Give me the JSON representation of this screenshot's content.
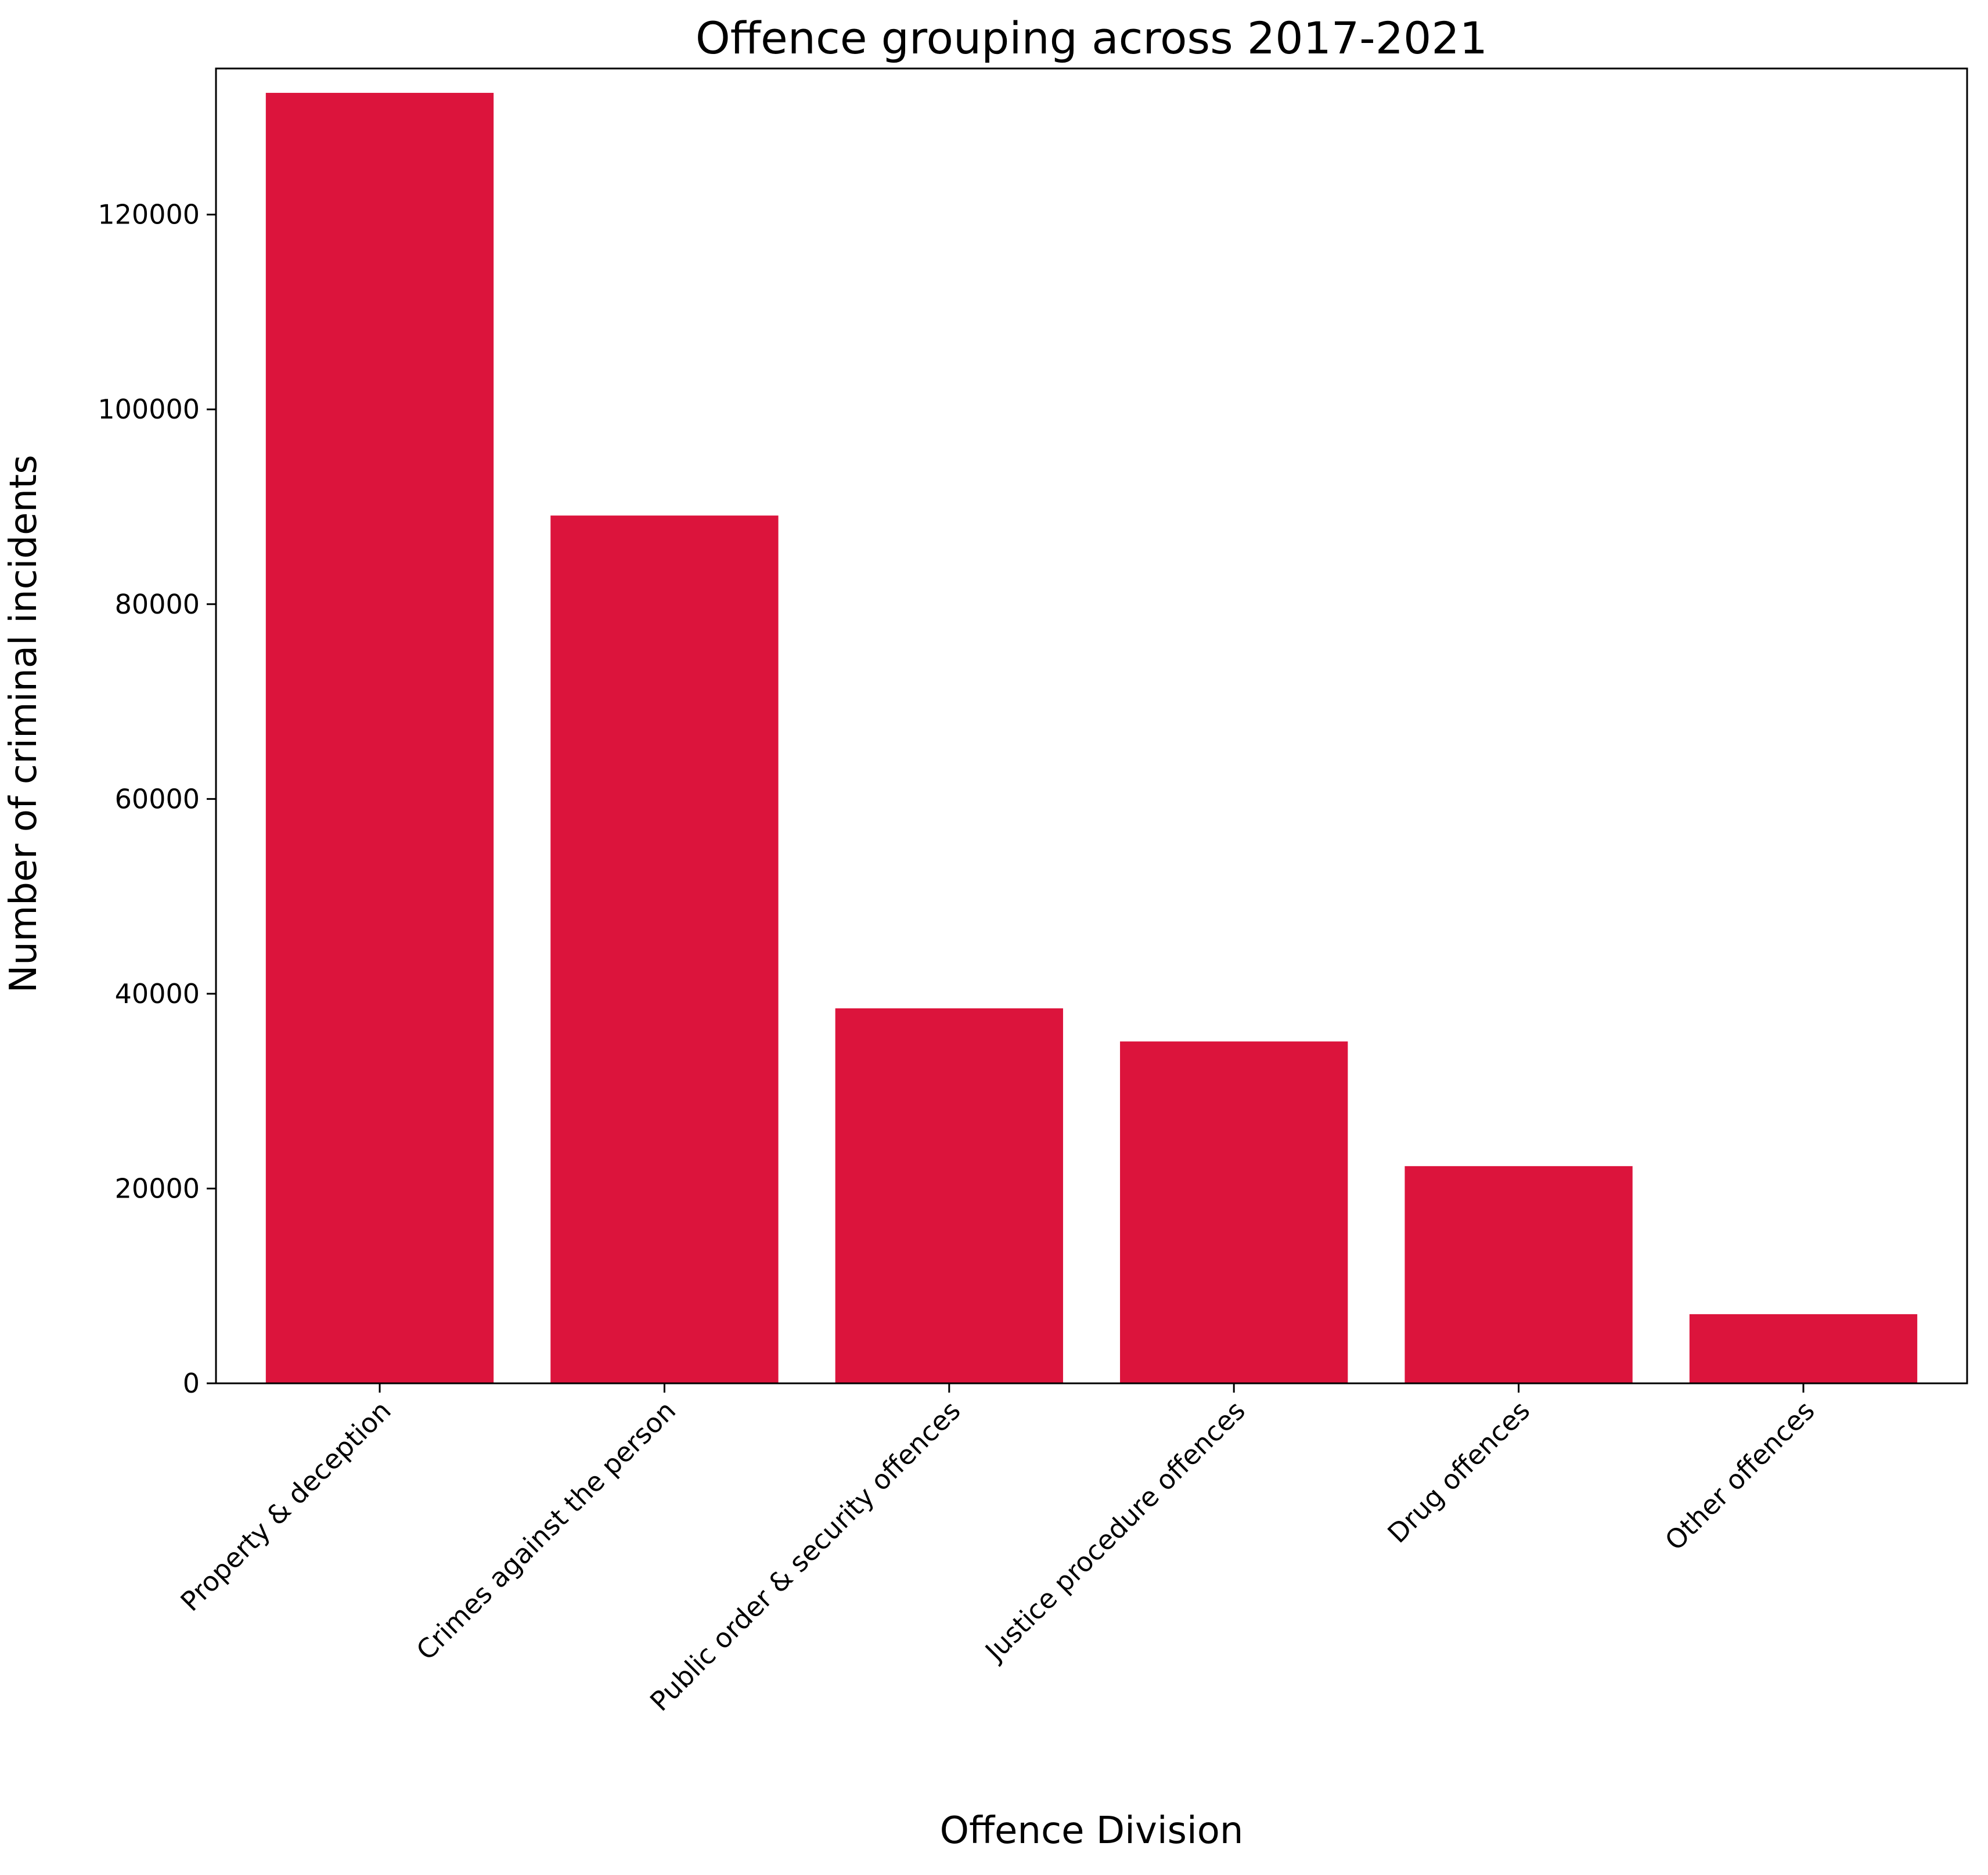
{
  "chart_data": {
    "type": "bar",
    "title": "Offence grouping across 2017-2021",
    "xlabel": "Offence Division",
    "ylabel": "Number of criminal incidents",
    "categories": [
      "Property & deception",
      "Crimes against the person",
      "Public order & security offences",
      "Justice procedure offences",
      "Drug offences",
      "Other offences"
    ],
    "values": [
      132500,
      89100,
      38500,
      35100,
      22300,
      7100
    ],
    "ylim": [
      0,
      135000
    ],
    "yticks": [
      0,
      20000,
      40000,
      60000,
      80000,
      100000,
      120000
    ],
    "bar_color": "#dc143c",
    "grid": false,
    "legend": "none"
  }
}
